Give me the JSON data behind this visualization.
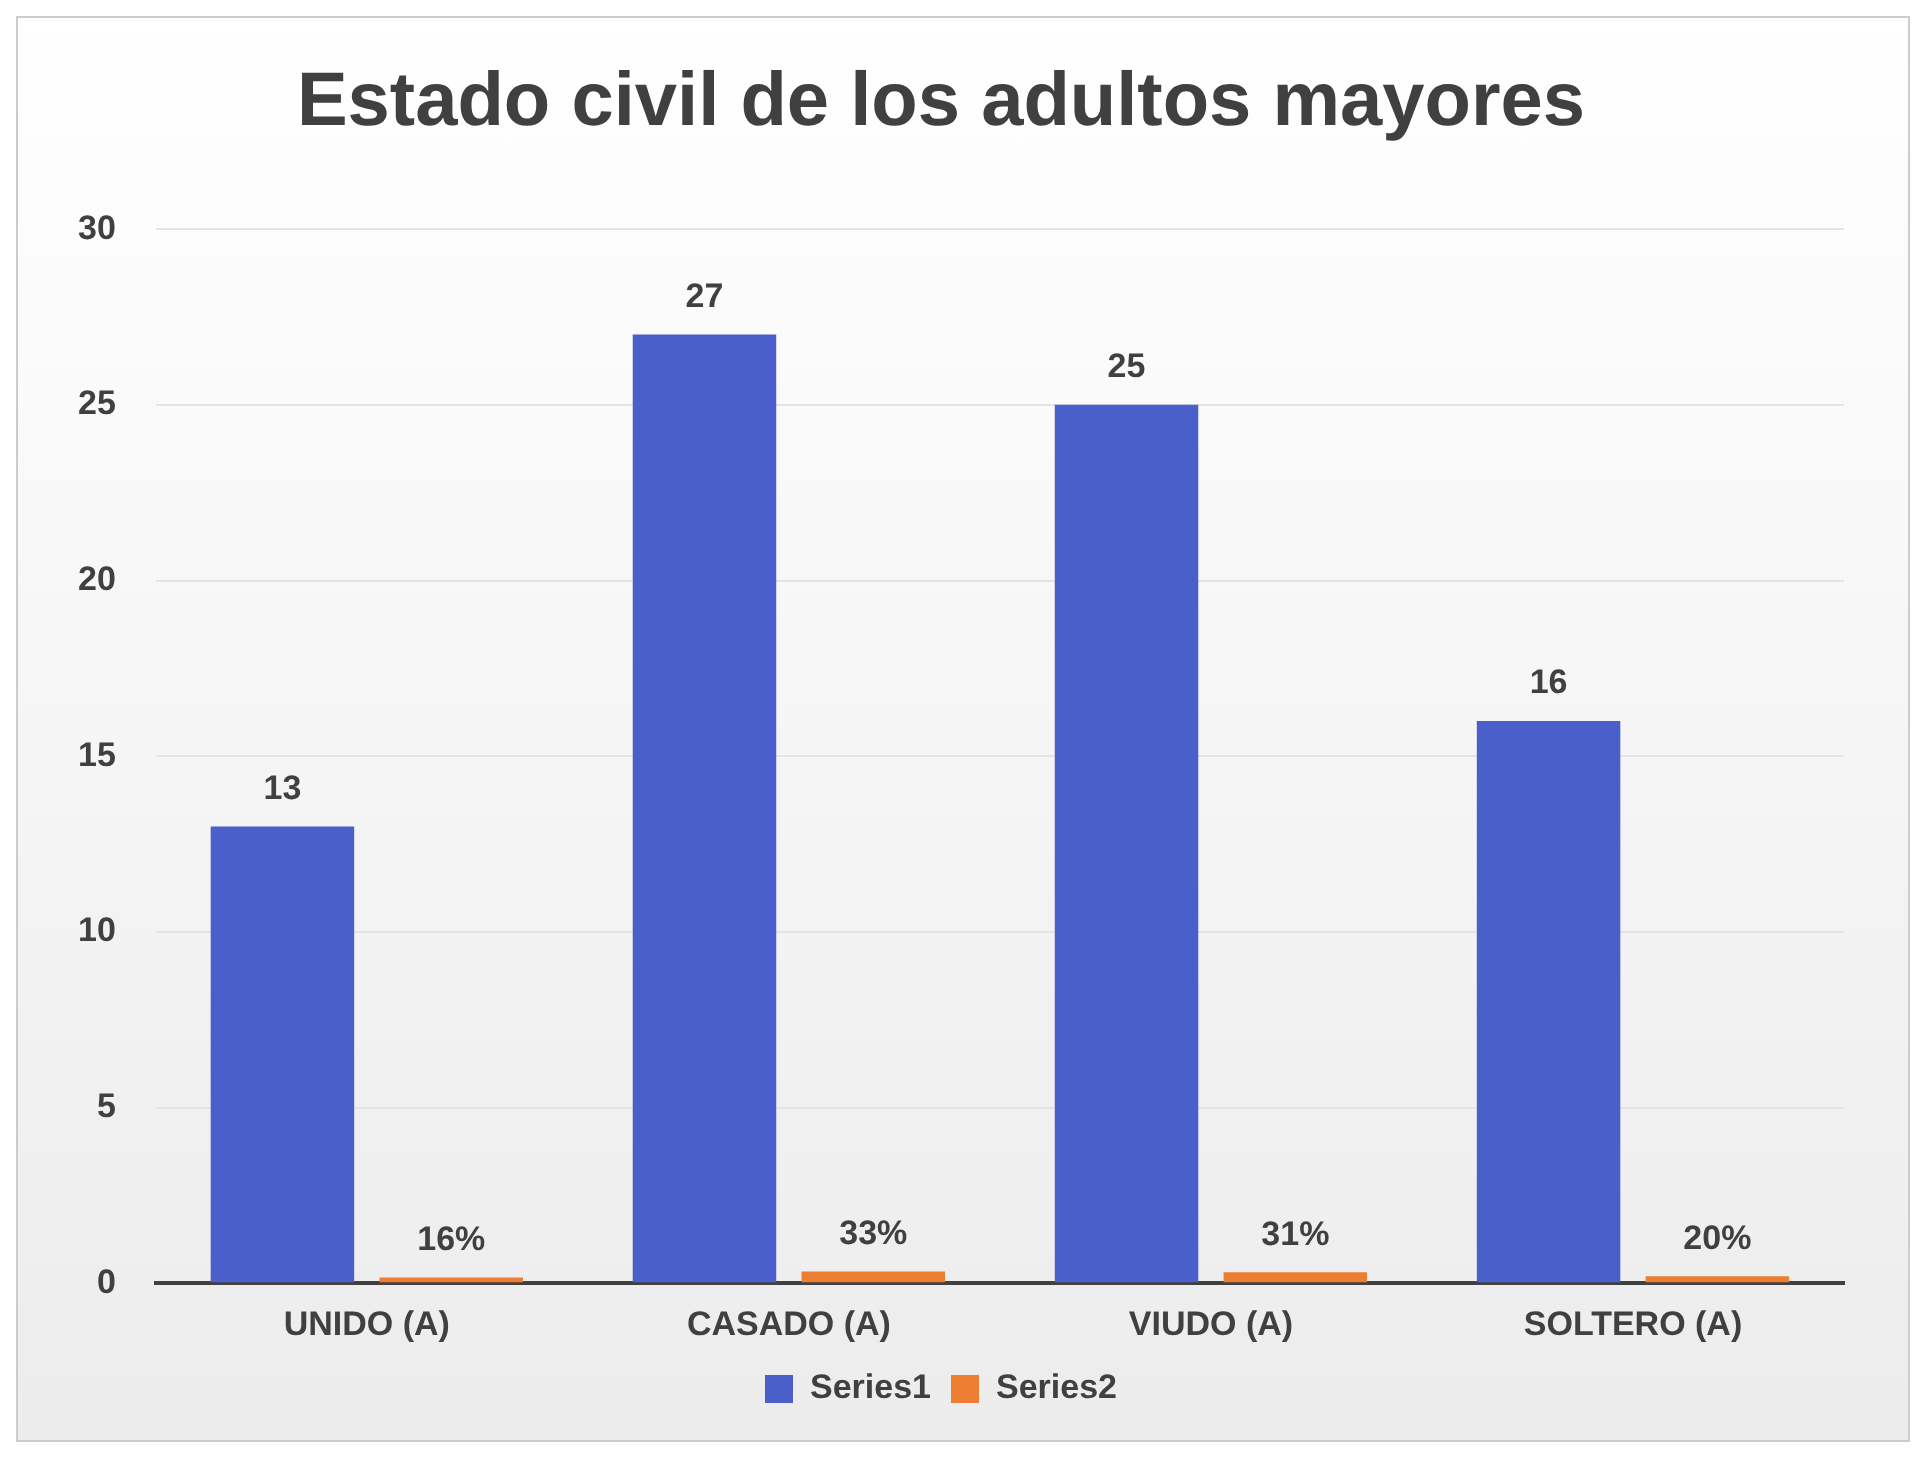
{
  "chart_data": {
    "type": "bar",
    "title": "Estado civil de los adultos mayores",
    "categories": [
      "UNIDO (A)",
      "CASADO (A)",
      "VIUDO (A)",
      "SOLTERO (A)"
    ],
    "series": [
      {
        "name": "Series1",
        "color": "#4a5fc9",
        "values": [
          13,
          27,
          25,
          16
        ],
        "value_labels": [
          "13",
          "27",
          "25",
          "16"
        ]
      },
      {
        "name": "Series2",
        "color": "#ed7d31",
        "values": [
          0.16,
          0.33,
          0.31,
          0.2
        ],
        "value_labels": [
          "16%",
          "33%",
          "31%",
          "20%"
        ]
      }
    ],
    "ylim": [
      0,
      30
    ],
    "yticks": [
      0,
      5,
      10,
      15,
      20,
      25,
      30
    ],
    "grid": "y",
    "legend": "bottom"
  }
}
